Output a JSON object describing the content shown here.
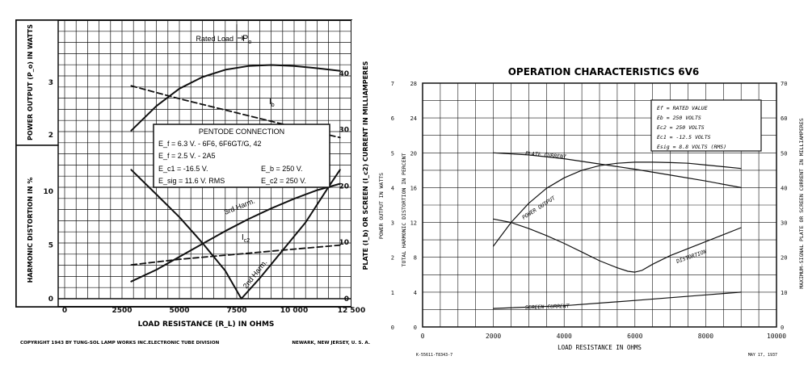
{
  "colors": {
    "ink": "#111111",
    "paper": "#ffffff",
    "grid": "#111111"
  },
  "chart_data": [
    {
      "type": "line",
      "tube": "6F6",
      "xlabel": "LOAD RESISTANCE (R_L) IN OHMS",
      "ylabel_left_top": "POWER OUTPUT (P_o) IN WATTS",
      "ylabel_left_bottom": "HARMONIC DISTORTION IN %",
      "ylabel_right": "PLATE (I_b) OR SCREEN (I_c2) CURRENT IN MILLIAMPERES",
      "x_ticks": [
        "0",
        "2500",
        "5000",
        "7500",
        "10 000",
        "12 500"
      ],
      "power_ticks": [
        "3",
        "2"
      ],
      "distortion_ticks": [
        "0",
        "5",
        "10"
      ],
      "current_ticks": [
        "0",
        "10",
        "20",
        "30",
        "40"
      ],
      "xlim": [
        0,
        12500
      ],
      "power_ylim": [
        1.5,
        3.9
      ],
      "distortion_ylim": [
        0,
        13
      ],
      "current_ylim": [
        0,
        44
      ],
      "grid": true,
      "series": [
        {
          "name": "P_o",
          "axis": "power",
          "style": "solid",
          "x": [
            2900,
            4000,
            5000,
            6000,
            7000,
            8000,
            9000,
            10000,
            11000,
            12000
          ],
          "y": [
            2.08,
            2.55,
            2.88,
            3.1,
            3.24,
            3.31,
            3.33,
            3.31,
            3.27,
            3.22
          ]
        },
        {
          "name": "I_b",
          "axis": "current",
          "style": "dashed",
          "x": [
            2900,
            5000,
            7500,
            10000,
            12000
          ],
          "y": [
            37.8,
            35.5,
            33,
            30.5,
            28.6
          ]
        },
        {
          "name": "I_c2",
          "axis": "current",
          "style": "dashed",
          "x": [
            2900,
            5000,
            7500,
            10000,
            12000
          ],
          "y": [
            6,
            7,
            7.9,
            8.8,
            9.5
          ]
        },
        {
          "name": "3rd Harm.",
          "axis": "distortion",
          "style": "solid",
          "x": [
            2900,
            4000,
            5000,
            6000,
            7000,
            8000,
            9000,
            10000,
            11000,
            12000
          ],
          "y": [
            1.6,
            2.7,
            3.9,
            5.1,
            6.3,
            7.4,
            8.4,
            9.3,
            10.1,
            10.7
          ]
        },
        {
          "name": "2nd Harm.",
          "axis": "distortion",
          "style": "solid",
          "x": [
            2900,
            4000,
            5000,
            6000,
            7000,
            7700,
            8500,
            9500,
            10500,
            11500,
            12000
          ],
          "y": [
            12,
            9.7,
            7.6,
            5.2,
            2.6,
            0,
            1.9,
            4.5,
            7.1,
            10.4,
            12
          ]
        }
      ],
      "rated_load_x": 7500,
      "annotations": {
        "rated_load": "Rated Load",
        "po_label": "P",
        "po_sub": "o",
        "ib_label": "I",
        "ib_sub": "b",
        "ic2_label": "I",
        "ic2_sub": "c2",
        "third_harm": "3rd Harm.",
        "second_harm": "2nd Harm."
      },
      "conditions_box": {
        "title": "PENTODE CONNECTION",
        "line1": "E_f = 6.3 V. - 6F6, 6F6GT/G, 42",
        "line2": "E_f = 2.5 V. - 2A5",
        "line3a": "E_c1 = -16.5 V.",
        "line3b": "E_b = 250 V.",
        "line4a": "E_sig = 11.6 V. RMS",
        "line4b": "E_c2 = 250 V."
      },
      "footer_left": "COPYRIGHT 1943 BY TUNG-SOL LAMP WORKS INC.ELECTRONIC TUBE DIVISION",
      "footer_right": "NEWARK, NEW JERSEY, U. S. A."
    },
    {
      "type": "line",
      "tube": "6V6",
      "title": "OPERATION CHARACTERISTICS 6V6",
      "xlabel": "LOAD RESISTANCE IN OHMS",
      "ylabel_outer_left": "POWER OUTPUT IN WATTS",
      "ylabel_inner_left": "TOTAL HARMONIC DISTORTION IN PERCENT",
      "ylabel_right": "MAXIMUM-SIGNAL PLATE OR SCREEN CURRENT IN MILLIAMPERES",
      "x_ticks": [
        "0",
        "2000",
        "4000",
        "6000",
        "8000",
        "10000"
      ],
      "watts_ticks": [
        "0",
        "1",
        "2",
        "3",
        "4",
        "5",
        "6",
        "7"
      ],
      "percent_ticks": [
        "0",
        "4",
        "8",
        "12",
        "16",
        "20",
        "24",
        "28"
      ],
      "ma_ticks": [
        "0",
        "10",
        "20",
        "30",
        "40",
        "50",
        "60",
        "70"
      ],
      "xlim": [
        0,
        10000
      ],
      "percent_ylim": [
        0,
        28
      ],
      "ma_ylim": [
        0,
        70
      ],
      "watts_ylim": [
        0,
        7
      ],
      "grid": true,
      "series": [
        {
          "name": "PLATE CURRENT",
          "axis": "ma",
          "x": [
            2000,
            3000,
            4000,
            5000,
            6000,
            7000,
            8000,
            9000
          ],
          "y": [
            50,
            49.4,
            48.3,
            46.8,
            45.3,
            43.6,
            41.9,
            40
          ]
        },
        {
          "name": "POWER OUTPUT",
          "axis": "watts",
          "x": [
            2000,
            2500,
            3000,
            3500,
            4000,
            4500,
            5000,
            5500,
            6000,
            6500,
            7000,
            7500,
            8000,
            8500,
            9000
          ],
          "y": [
            2.32,
            3.0,
            3.55,
            3.98,
            4.28,
            4.5,
            4.63,
            4.7,
            4.73,
            4.73,
            4.72,
            4.7,
            4.65,
            4.6,
            4.55
          ]
        },
        {
          "name": "DISTORTION",
          "axis": "percent",
          "x": [
            2000,
            2500,
            3000,
            3500,
            4000,
            4500,
            5000,
            5500,
            5800,
            6000,
            6200,
            6500,
            7000,
            7500,
            8000,
            8500,
            9000
          ],
          "y": [
            12.4,
            12,
            11.3,
            10.5,
            9.6,
            8.6,
            7.6,
            6.8,
            6.4,
            6.3,
            6.5,
            7.2,
            8.2,
            9.0,
            9.8,
            10.6,
            11.4
          ]
        },
        {
          "name": "SCREEN CURRENT",
          "axis": "ma",
          "x": [
            2000,
            4000,
            6000,
            8000,
            9000
          ],
          "y": [
            5.3,
            6.1,
            7.6,
            9.2,
            10
          ]
        }
      ],
      "labels": {
        "plate_current": "PLATE CURRENT",
        "power_output": "POWER OUTPUT",
        "distortion": "DISTORTION",
        "screen_current": "SCREEN CURRENT"
      },
      "conditions_box": {
        "line1": "Ef = RATED VALUE",
        "line2": "Eb = 250 VOLTS",
        "line3": "Ec2 = 250 VOLTS",
        "line4": "Ec1 = -12.5 VOLTS",
        "line5": "Esig = 8.8 VOLTS (RMS)"
      },
      "footer_left": "K-55611-T8343-7",
      "footer_right": "MAY 17, 1937"
    }
  ]
}
